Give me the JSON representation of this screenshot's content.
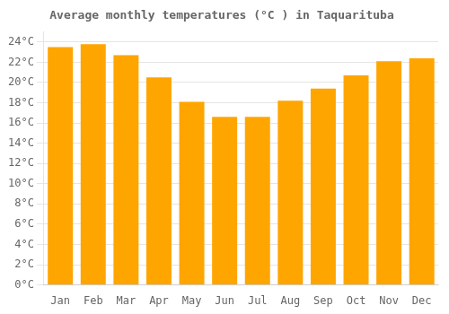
{
  "chart_data": {
    "type": "bar",
    "title": "Average monthly temperatures (°C ) in Taquarituba",
    "categories": [
      "Jan",
      "Feb",
      "Mar",
      "Apr",
      "May",
      "Jun",
      "Jul",
      "Aug",
      "Sep",
      "Oct",
      "Nov",
      "Dec"
    ],
    "values": [
      23.5,
      23.8,
      22.7,
      20.5,
      18.1,
      16.6,
      16.6,
      18.2,
      19.4,
      20.7,
      22.1,
      22.4
    ],
    "color": "#FFA500",
    "ylim": [
      0,
      25
    ],
    "yticks": [
      {
        "value": 0,
        "label": "0°C"
      },
      {
        "value": 2,
        "label": "2°C"
      },
      {
        "value": 4,
        "label": "4°C"
      },
      {
        "value": 6,
        "label": "6°C"
      },
      {
        "value": 8,
        "label": "8°C"
      },
      {
        "value": 10,
        "label": "10°C"
      },
      {
        "value": 12,
        "label": "12°C"
      },
      {
        "value": 14,
        "label": "14°C"
      },
      {
        "value": 16,
        "label": "16°C"
      },
      {
        "value": 18,
        "label": "18°C"
      },
      {
        "value": 20,
        "label": "20°C"
      },
      {
        "value": 22,
        "label": "22°C"
      },
      {
        "value": 24,
        "label": "24°C"
      }
    ],
    "grid": true
  }
}
